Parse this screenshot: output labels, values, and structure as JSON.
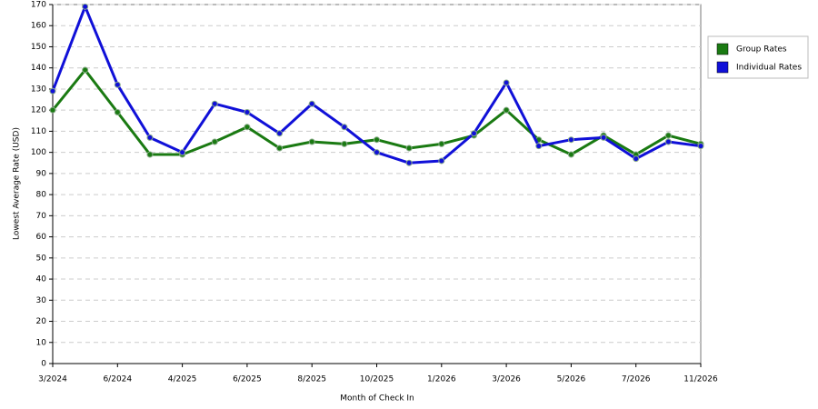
{
  "chart_data": {
    "type": "line",
    "x_label": "Month of Check In",
    "y_label": "Lowest Average Rate (USD)",
    "categories": [
      "3/2024",
      null,
      "6/2024",
      null,
      "4/2025",
      null,
      "6/2025",
      null,
      "8/2025",
      null,
      "10/2025",
      null,
      "1/2026",
      null,
      "3/2026",
      null,
      "5/2026",
      null,
      "7/2026",
      null,
      "11/2026"
    ],
    "series": [
      {
        "name": "Group Rates",
        "color": "#1a7a12",
        "values": [
          120,
          139,
          119,
          99,
          99,
          105,
          112,
          102,
          105,
          104,
          106,
          102,
          104,
          108,
          120,
          106,
          99,
          108,
          99,
          108,
          104
        ]
      },
      {
        "name": "Individual Rates",
        "color": "#1010d8",
        "values": [
          129,
          169,
          132,
          107,
          100,
          123,
          119,
          109,
          123,
          112,
          100,
          95,
          96,
          109,
          133,
          103,
          106,
          107,
          97,
          105,
          103
        ]
      }
    ],
    "ylim": [
      0,
      170
    ],
    "yticks": [
      0,
      10,
      20,
      30,
      40,
      50,
      60,
      70,
      80,
      90,
      100,
      110,
      120,
      130,
      140,
      150,
      160,
      170
    ],
    "grid": true,
    "legend": "right"
  }
}
